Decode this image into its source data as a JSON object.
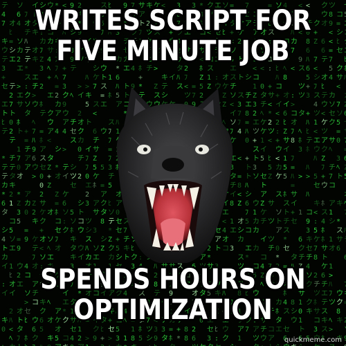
{
  "meme": {
    "top_text": [
      "WRITES SCRIPT FOR",
      "FIVE MINUTE JOB"
    ],
    "bottom_text": [
      "SPENDS HOURS ON",
      "OPTIMIZATION"
    ],
    "watermark": "quickmeme.com"
  },
  "background": {
    "style": "matrix-code-rain",
    "glyph_color": "#2fd23c",
    "bright_glyph_color": "#b6ffb4",
    "base_color": "#020402"
  },
  "subject": {
    "icon": "insanity-wolf-icon",
    "fur_color": "#2b2b2d",
    "mouth_color": "#b8323a",
    "eye_color": "#e8e8e0"
  }
}
